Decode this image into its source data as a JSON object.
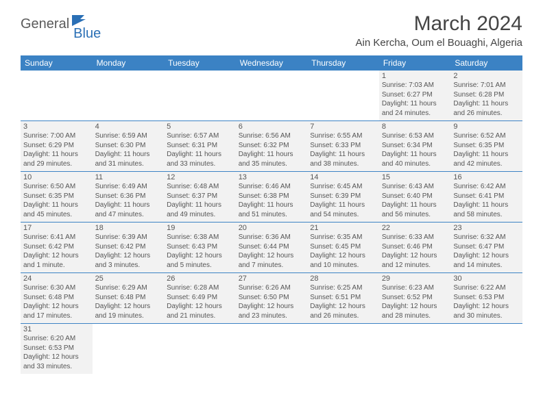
{
  "brand": {
    "part1": "General",
    "part2": "Blue"
  },
  "title": "March 2024",
  "location": "Ain Kercha, Oum el Bouaghi, Algeria",
  "colors": {
    "header_bg": "#3b82c4",
    "header_fg": "#ffffff",
    "cell_bg": "#f2f2f2",
    "border": "#3b82c4",
    "text": "#555555",
    "logo_gray": "#5a5a5a",
    "logo_blue": "#2a6fb5"
  },
  "weekdays": [
    "Sunday",
    "Monday",
    "Tuesday",
    "Wednesday",
    "Thursday",
    "Friday",
    "Saturday"
  ],
  "weeks": [
    [
      null,
      null,
      null,
      null,
      null,
      {
        "n": "1",
        "sunrise": "7:03 AM",
        "sunset": "6:27 PM",
        "daylight": "11 hours and 24 minutes."
      },
      {
        "n": "2",
        "sunrise": "7:01 AM",
        "sunset": "6:28 PM",
        "daylight": "11 hours and 26 minutes."
      }
    ],
    [
      {
        "n": "3",
        "sunrise": "7:00 AM",
        "sunset": "6:29 PM",
        "daylight": "11 hours and 29 minutes."
      },
      {
        "n": "4",
        "sunrise": "6:59 AM",
        "sunset": "6:30 PM",
        "daylight": "11 hours and 31 minutes."
      },
      {
        "n": "5",
        "sunrise": "6:57 AM",
        "sunset": "6:31 PM",
        "daylight": "11 hours and 33 minutes."
      },
      {
        "n": "6",
        "sunrise": "6:56 AM",
        "sunset": "6:32 PM",
        "daylight": "11 hours and 35 minutes."
      },
      {
        "n": "7",
        "sunrise": "6:55 AM",
        "sunset": "6:33 PM",
        "daylight": "11 hours and 38 minutes."
      },
      {
        "n": "8",
        "sunrise": "6:53 AM",
        "sunset": "6:34 PM",
        "daylight": "11 hours and 40 minutes."
      },
      {
        "n": "9",
        "sunrise": "6:52 AM",
        "sunset": "6:35 PM",
        "daylight": "11 hours and 42 minutes."
      }
    ],
    [
      {
        "n": "10",
        "sunrise": "6:50 AM",
        "sunset": "6:35 PM",
        "daylight": "11 hours and 45 minutes."
      },
      {
        "n": "11",
        "sunrise": "6:49 AM",
        "sunset": "6:36 PM",
        "daylight": "11 hours and 47 minutes."
      },
      {
        "n": "12",
        "sunrise": "6:48 AM",
        "sunset": "6:37 PM",
        "daylight": "11 hours and 49 minutes."
      },
      {
        "n": "13",
        "sunrise": "6:46 AM",
        "sunset": "6:38 PM",
        "daylight": "11 hours and 51 minutes."
      },
      {
        "n": "14",
        "sunrise": "6:45 AM",
        "sunset": "6:39 PM",
        "daylight": "11 hours and 54 minutes."
      },
      {
        "n": "15",
        "sunrise": "6:43 AM",
        "sunset": "6:40 PM",
        "daylight": "11 hours and 56 minutes."
      },
      {
        "n": "16",
        "sunrise": "6:42 AM",
        "sunset": "6:41 PM",
        "daylight": "11 hours and 58 minutes."
      }
    ],
    [
      {
        "n": "17",
        "sunrise": "6:41 AM",
        "sunset": "6:42 PM",
        "daylight": "12 hours and 1 minute."
      },
      {
        "n": "18",
        "sunrise": "6:39 AM",
        "sunset": "6:42 PM",
        "daylight": "12 hours and 3 minutes."
      },
      {
        "n": "19",
        "sunrise": "6:38 AM",
        "sunset": "6:43 PM",
        "daylight": "12 hours and 5 minutes."
      },
      {
        "n": "20",
        "sunrise": "6:36 AM",
        "sunset": "6:44 PM",
        "daylight": "12 hours and 7 minutes."
      },
      {
        "n": "21",
        "sunrise": "6:35 AM",
        "sunset": "6:45 PM",
        "daylight": "12 hours and 10 minutes."
      },
      {
        "n": "22",
        "sunrise": "6:33 AM",
        "sunset": "6:46 PM",
        "daylight": "12 hours and 12 minutes."
      },
      {
        "n": "23",
        "sunrise": "6:32 AM",
        "sunset": "6:47 PM",
        "daylight": "12 hours and 14 minutes."
      }
    ],
    [
      {
        "n": "24",
        "sunrise": "6:30 AM",
        "sunset": "6:48 PM",
        "daylight": "12 hours and 17 minutes."
      },
      {
        "n": "25",
        "sunrise": "6:29 AM",
        "sunset": "6:48 PM",
        "daylight": "12 hours and 19 minutes."
      },
      {
        "n": "26",
        "sunrise": "6:28 AM",
        "sunset": "6:49 PM",
        "daylight": "12 hours and 21 minutes."
      },
      {
        "n": "27",
        "sunrise": "6:26 AM",
        "sunset": "6:50 PM",
        "daylight": "12 hours and 23 minutes."
      },
      {
        "n": "28",
        "sunrise": "6:25 AM",
        "sunset": "6:51 PM",
        "daylight": "12 hours and 26 minutes."
      },
      {
        "n": "29",
        "sunrise": "6:23 AM",
        "sunset": "6:52 PM",
        "daylight": "12 hours and 28 minutes."
      },
      {
        "n": "30",
        "sunrise": "6:22 AM",
        "sunset": "6:53 PM",
        "daylight": "12 hours and 30 minutes."
      }
    ],
    [
      {
        "n": "31",
        "sunrise": "6:20 AM",
        "sunset": "6:53 PM",
        "daylight": "12 hours and 33 minutes."
      },
      null,
      null,
      null,
      null,
      null,
      null
    ]
  ],
  "labels": {
    "sunrise": "Sunrise:",
    "sunset": "Sunset:",
    "daylight": "Daylight:"
  }
}
